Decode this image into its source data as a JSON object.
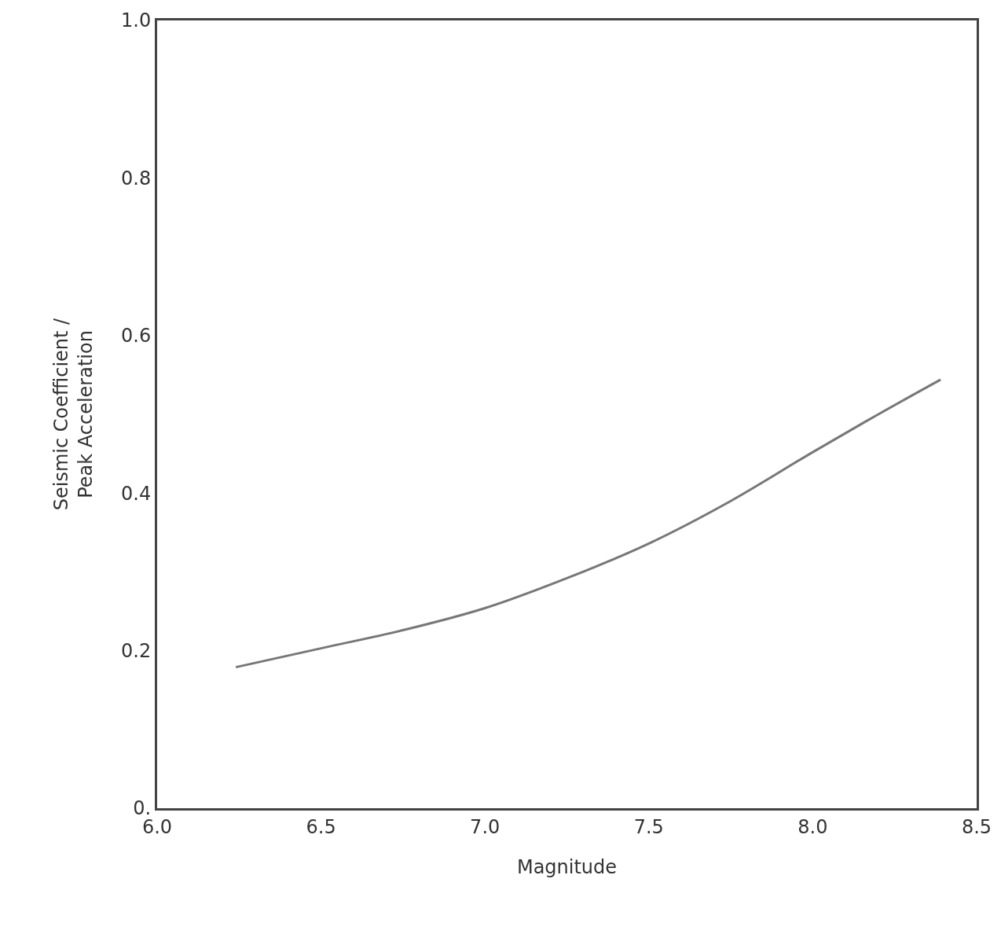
{
  "chart_data": {
    "type": "line",
    "xlabel": "Magnitude",
    "ylabel": "Seismic Coefficient /\nPeak Acceleration",
    "x": [
      6.24,
      6.5,
      6.75,
      7.0,
      7.25,
      7.5,
      7.75,
      8.0,
      8.2,
      8.39
    ],
    "series": [
      {
        "color": "#777777",
        "values": [
          0.179,
          0.203,
          0.226,
          0.254,
          0.292,
          0.336,
          0.39,
          0.452,
          0.5,
          0.544
        ]
      }
    ],
    "xlim": [
      6.0,
      8.5
    ],
    "ylim": [
      0,
      1.0
    ],
    "xticks": [
      {
        "value": 6,
        "label": "6.0"
      },
      6.5,
      {
        "value": 7,
        "label": "7.0"
      },
      7.5,
      {
        "value": 8,
        "label": "8.0"
      },
      8.5
    ],
    "yticks": [
      {
        "value": 0,
        "label": "0."
      },
      0.2,
      0.4,
      0.6,
      0.8,
      {
        "value": 1,
        "label": "1.0"
      }
    ],
    "grid": false,
    "legend": false,
    "marker": "none",
    "line_style": "solid"
  }
}
